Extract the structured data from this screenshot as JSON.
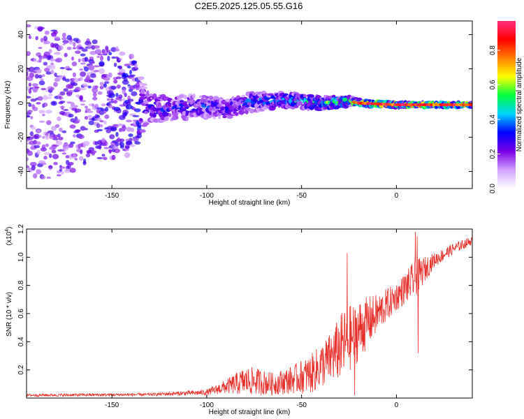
{
  "title": "C2E5.2025.125.05.55.G16",
  "chart_data": [
    {
      "type": "heatmap",
      "xlabel": "Height of straight line (km)",
      "ylabel": "Frequency (Hz)",
      "xlim": [
        -195,
        40
      ],
      "ylim": [
        -50,
        48
      ],
      "x_ticks": [
        -150,
        -100,
        -50,
        0
      ],
      "y_ticks": [
        -40,
        -20,
        0,
        20,
        40
      ],
      "colorbar": {
        "label": "Normalized spectral amplitude",
        "range": [
          0.0,
          0.97
        ],
        "ticks": [
          0.0,
          0.2,
          0.4,
          0.6,
          0.8
        ],
        "tick_labels": [
          "0.0",
          "0.2",
          "0.4",
          "0.6",
          "0.8"
        ],
        "colormap": [
          "#ffffff",
          "#d2a0ff",
          "#7a00e6",
          "#0000ff",
          "#00d2ff",
          "#00ff40",
          "#ffff00",
          "#ff8000",
          "#ff0000",
          "#ff3080"
        ]
      },
      "trace": [
        {
          "x": -195,
          "center": 0,
          "spread": 48,
          "amp": 0.25
        },
        {
          "x": -140,
          "center": 0,
          "spread": 30,
          "amp": 0.3
        },
        {
          "x": -130,
          "center": -3,
          "spread": 9,
          "amp": 0.35
        },
        {
          "x": -100,
          "center": -2,
          "spread": 7,
          "amp": 0.35
        },
        {
          "x": -90,
          "center": -4,
          "spread": 6,
          "amp": 0.35
        },
        {
          "x": -80,
          "center": 0,
          "spread": 6,
          "amp": 0.4
        },
        {
          "x": -60,
          "center": 2,
          "spread": 5,
          "amp": 0.45
        },
        {
          "x": -40,
          "center": 0,
          "spread": 4,
          "amp": 0.55
        },
        {
          "x": -25,
          "center": 1,
          "spread": 3,
          "amp": 0.65
        },
        {
          "x": -20,
          "center": 0,
          "spread": 2,
          "amp": 0.9
        },
        {
          "x": 0,
          "center": -1,
          "spread": 1.5,
          "amp": 0.95
        },
        {
          "x": 40,
          "center": -1,
          "spread": 1.5,
          "amp": 0.95
        }
      ]
    },
    {
      "type": "line",
      "xlabel": "Height of straight line (km)",
      "ylabel": "SNR (10 * v/v)",
      "y_multiplier": "(x10",
      "y_multiplier_exp": "4",
      "y_multiplier_close": ")",
      "xlim": [
        -195,
        40
      ],
      "ylim": [
        0,
        1.2
      ],
      "x_ticks": [
        -150,
        -100,
        -50,
        0
      ],
      "y_ticks": [
        0.2,
        0.4,
        0.6,
        0.8,
        1.0,
        1.2
      ],
      "color": "#e8302a",
      "envelope": [
        {
          "x": -195,
          "base": 0.02,
          "noise": 0.01
        },
        {
          "x": -130,
          "base": 0.025,
          "noise": 0.01
        },
        {
          "x": -100,
          "base": 0.04,
          "noise": 0.02
        },
        {
          "x": -90,
          "base": 0.08,
          "noise": 0.05
        },
        {
          "x": -80,
          "base": 0.12,
          "noise": 0.1
        },
        {
          "x": -75,
          "base": 0.12,
          "noise": 0.1
        },
        {
          "x": -65,
          "base": 0.1,
          "noise": 0.08
        },
        {
          "x": -55,
          "base": 0.13,
          "noise": 0.1
        },
        {
          "x": -45,
          "base": 0.17,
          "noise": 0.14
        },
        {
          "x": -35,
          "base": 0.28,
          "noise": 0.18
        },
        {
          "x": -28,
          "base": 0.38,
          "noise": 0.25
        },
        {
          "x": -20,
          "base": 0.48,
          "noise": 0.22
        },
        {
          "x": -10,
          "base": 0.6,
          "noise": 0.14
        },
        {
          "x": 0,
          "base": 0.72,
          "noise": 0.1
        },
        {
          "x": 10,
          "base": 0.85,
          "noise": 0.13
        },
        {
          "x": 20,
          "base": 0.98,
          "noise": 0.05
        },
        {
          "x": 30,
          "base": 1.06,
          "noise": 0.04
        },
        {
          "x": 40,
          "base": 1.12,
          "noise": 0.03
        }
      ],
      "spikes": [
        {
          "x": -26,
          "y": 1.03
        },
        {
          "x": 10,
          "y": 1.18
        },
        {
          "x": 11,
          "y": 1.15
        },
        {
          "x": -22,
          "y": 0.02
        },
        {
          "x": 11.5,
          "y": 0.32
        }
      ]
    }
  ]
}
